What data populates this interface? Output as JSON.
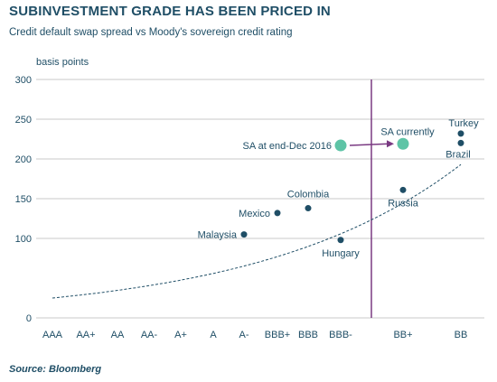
{
  "chart_data": {
    "type": "scatter",
    "title": "SUBINVESTMENT GRADE HAS BEEN PRICED IN",
    "subtitle": "Credit default swap spread vs Moody's sovereign credit rating",
    "ylabel": "basis points",
    "xlabel": "",
    "source": "Source: Bloomberg",
    "categories": [
      "AAA",
      "AA+",
      "AA",
      "AA-",
      "A+",
      "A",
      "A-",
      "BBB+",
      "BBB",
      "BBB-",
      "BB+",
      "BB"
    ],
    "yticks": [
      0,
      100,
      150,
      200,
      250,
      300
    ],
    "ylim": [
      0,
      300
    ],
    "points": [
      {
        "label": "Malaysia",
        "x": "A-",
        "y": 105
      },
      {
        "label": "Mexico",
        "x": "BBB+",
        "y": 132
      },
      {
        "label": "Colombia",
        "x": "BBB",
        "y": 138
      },
      {
        "label": "Hungary",
        "x": "BBB-",
        "y": 98
      },
      {
        "label": "Russia",
        "x": "BB+",
        "y": 161
      },
      {
        "label": "Turkey",
        "x": "BB",
        "y": 232
      },
      {
        "label": "Brazil",
        "x": "BB",
        "y": 220
      }
    ],
    "highlight_points": [
      {
        "label": "SA at end-Dec 2016",
        "x": "BBB-",
        "y": 217
      },
      {
        "label": "SA currently",
        "x": "BB+",
        "y": 219
      }
    ],
    "trend_line": {
      "style": "dashed",
      "x_start": "AAA",
      "y_start": 25,
      "x_end": "BB",
      "y_end": 193
    },
    "vertical_line": {
      "position": "between BBB- and BB+"
    },
    "colors": {
      "text": "#1f4e66",
      "point": "#1f4e66",
      "highlight": "#5ec4a6",
      "divider": "#7a3a82",
      "axis": "#c8c8c8"
    }
  }
}
